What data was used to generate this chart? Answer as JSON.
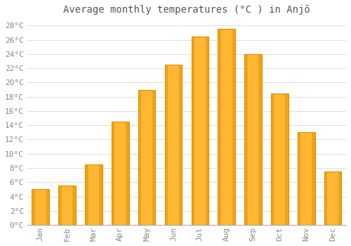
{
  "title": "Average monthly temperatures (°C ) in Anjō",
  "months": [
    "Jan",
    "Feb",
    "Mar",
    "Apr",
    "May",
    "Jun",
    "Jul",
    "Aug",
    "Sep",
    "Oct",
    "Nov",
    "Dec"
  ],
  "values": [
    5.0,
    5.5,
    8.5,
    14.5,
    19.0,
    22.5,
    26.5,
    27.5,
    24.0,
    18.5,
    13.0,
    7.5
  ],
  "bar_color_light": "#FFB733",
  "bar_color_dark": "#F5A000",
  "bar_edge_color": "#E09000",
  "background_color": "#FFFFFF",
  "plot_bg_color": "#FFFFFF",
  "grid_color": "#DDDDDD",
  "ylim": [
    0,
    29
  ],
  "ytick_max": 28,
  "ytick_step": 2,
  "title_fontsize": 10,
  "tick_fontsize": 8,
  "tick_color": "#888888",
  "title_color": "#555555",
  "font_family": "monospace"
}
